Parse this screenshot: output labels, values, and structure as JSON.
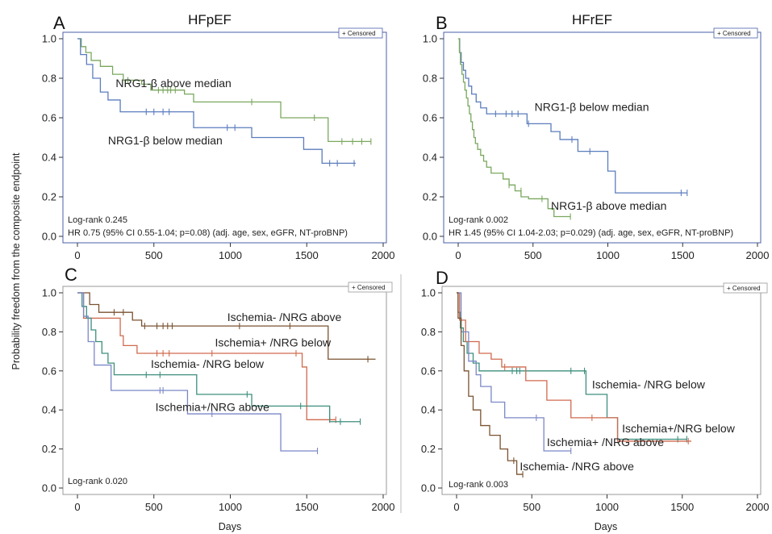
{
  "ylabel_shared": "Probability freedom from the composite endpoint",
  "xlabel_shared": "Days",
  "chart_data": [
    {
      "panel": "A",
      "title": "HFpEF",
      "type": "line",
      "xlim": [
        0,
        2000
      ],
      "ylim": [
        0,
        1
      ],
      "xticks": [
        0,
        500,
        1000,
        1500,
        2000
      ],
      "yticks": [
        0.0,
        0.2,
        0.4,
        0.6,
        0.8,
        1.0
      ],
      "legend": "Censored",
      "stats": [
        "Log-rank 0.245",
        "HR 0.75 (95% CI 0.55-1.04; p=0.08) (adj. age, sex, eGFR, NT-proBNP)"
      ],
      "series": [
        {
          "name": "NRG1-β above median",
          "color": "#7aa85e",
          "steps": [
            [
              0,
              1.0
            ],
            [
              25,
              0.96
            ],
            [
              55,
              0.93
            ],
            [
              90,
              0.89
            ],
            [
              150,
              0.86
            ],
            [
              230,
              0.82
            ],
            [
              300,
              0.79
            ],
            [
              420,
              0.77
            ],
            [
              480,
              0.74
            ],
            [
              700,
              0.72
            ],
            [
              760,
              0.68
            ],
            [
              1330,
              0.6
            ],
            [
              1640,
              0.48
            ],
            [
              1920,
              0.48
            ]
          ],
          "censored": [
            [
              330,
              0.79
            ],
            [
              530,
              0.74
            ],
            [
              560,
              0.74
            ],
            [
              590,
              0.74
            ],
            [
              610,
              0.74
            ],
            [
              640,
              0.74
            ],
            [
              1140,
              0.68
            ],
            [
              1550,
              0.6
            ],
            [
              1730,
              0.48
            ],
            [
              1800,
              0.48
            ],
            [
              1860,
              0.48
            ],
            [
              1920,
              0.48
            ]
          ],
          "label_pos": [
            250,
            0.755
          ]
        },
        {
          "name": "NRG1-β below median",
          "color": "#5b7dbd",
          "steps": [
            [
              0,
              1.0
            ],
            [
              20,
              0.92
            ],
            [
              60,
              0.87
            ],
            [
              100,
              0.8
            ],
            [
              150,
              0.73
            ],
            [
              200,
              0.69
            ],
            [
              280,
              0.63
            ],
            [
              760,
              0.55
            ],
            [
              1140,
              0.5
            ],
            [
              1480,
              0.44
            ],
            [
              1600,
              0.37
            ],
            [
              1820,
              0.37
            ]
          ],
          "censored": [
            [
              450,
              0.63
            ],
            [
              500,
              0.63
            ],
            [
              560,
              0.63
            ],
            [
              600,
              0.63
            ],
            [
              980,
              0.55
            ],
            [
              1030,
              0.55
            ],
            [
              1650,
              0.37
            ],
            [
              1700,
              0.37
            ],
            [
              1810,
              0.37
            ]
          ],
          "label_pos": [
            200,
            0.465
          ]
        }
      ]
    },
    {
      "panel": "B",
      "title": "HFrEF",
      "type": "line",
      "xlim": [
        0,
        2000
      ],
      "ylim": [
        0,
        1
      ],
      "xticks": [
        0,
        500,
        1000,
        1500,
        2000
      ],
      "yticks": [
        0.0,
        0.2,
        0.4,
        0.6,
        0.8,
        1.0
      ],
      "legend": "Censored",
      "stats": [
        "Log-rank 0.002",
        "HR 1.45 (95% CI 1.04-2.03; p=0.029) (adj. age, sex, eGFR, NT-proBNP)"
      ],
      "series": [
        {
          "name": "NRG1-β below median",
          "color": "#5b7dbd",
          "steps": [
            [
              0,
              1.0
            ],
            [
              10,
              0.93
            ],
            [
              20,
              0.88
            ],
            [
              35,
              0.84
            ],
            [
              50,
              0.8
            ],
            [
              70,
              0.76
            ],
            [
              90,
              0.72
            ],
            [
              120,
              0.68
            ],
            [
              150,
              0.65
            ],
            [
              190,
              0.62
            ],
            [
              460,
              0.57
            ],
            [
              620,
              0.53
            ],
            [
              680,
              0.49
            ],
            [
              800,
              0.43
            ],
            [
              1000,
              0.33
            ],
            [
              1050,
              0.22
            ],
            [
              1530,
              0.22
            ]
          ],
          "censored": [
            [
              250,
              0.62
            ],
            [
              320,
              0.62
            ],
            [
              360,
              0.62
            ],
            [
              400,
              0.62
            ],
            [
              470,
              0.57
            ],
            [
              760,
              0.49
            ],
            [
              880,
              0.43
            ],
            [
              1490,
              0.22
            ],
            [
              1530,
              0.22
            ]
          ],
          "label_pos": [
            510,
            0.635
          ]
        },
        {
          "name": "NRG1-β above median",
          "color": "#7aa85e",
          "steps": [
            [
              0,
              1.0
            ],
            [
              8,
              0.93
            ],
            [
              15,
              0.87
            ],
            [
              25,
              0.82
            ],
            [
              35,
              0.78
            ],
            [
              45,
              0.74
            ],
            [
              55,
              0.7
            ],
            [
              65,
              0.66
            ],
            [
              75,
              0.62
            ],
            [
              85,
              0.58
            ],
            [
              95,
              0.54
            ],
            [
              105,
              0.5
            ],
            [
              115,
              0.47
            ],
            [
              130,
              0.44
            ],
            [
              150,
              0.41
            ],
            [
              170,
              0.38
            ],
            [
              190,
              0.35
            ],
            [
              220,
              0.32
            ],
            [
              300,
              0.29
            ],
            [
              340,
              0.26
            ],
            [
              380,
              0.23
            ],
            [
              420,
              0.2
            ],
            [
              470,
              0.19
            ],
            [
              600,
              0.14
            ],
            [
              640,
              0.1
            ],
            [
              750,
              0.1
            ]
          ],
          "censored": [
            [
              340,
              0.26
            ],
            [
              420,
              0.23
            ],
            [
              560,
              0.19
            ],
            [
              750,
              0.1
            ]
          ],
          "label_pos": [
            620,
            0.135
          ]
        }
      ]
    },
    {
      "panel": "C",
      "type": "line",
      "xlim": [
        0,
        2000
      ],
      "ylim": [
        0,
        1
      ],
      "xticks": [
        0,
        500,
        1000,
        1500,
        2000
      ],
      "yticks": [
        0.0,
        0.2,
        0.4,
        0.6,
        0.8,
        1.0
      ],
      "legend": "Censored",
      "stats": [
        "Log-rank 0.020"
      ],
      "series": [
        {
          "name": "Ischemia- /NRG above",
          "color": "#7a5230",
          "steps": [
            [
              0,
              1.0
            ],
            [
              80,
              0.94
            ],
            [
              140,
              0.9
            ],
            [
              360,
              0.86
            ],
            [
              420,
              0.83
            ],
            [
              1640,
              0.66
            ],
            [
              1950,
              0.66
            ]
          ],
          "censored": [
            [
              240,
              0.9
            ],
            [
              300,
              0.9
            ],
            [
              440,
              0.83
            ],
            [
              520,
              0.83
            ],
            [
              560,
              0.83
            ],
            [
              590,
              0.83
            ],
            [
              620,
              0.83
            ],
            [
              1060,
              0.83
            ],
            [
              1390,
              0.83
            ],
            [
              1900,
              0.66
            ]
          ],
          "label_pos": [
            980,
            0.855
          ]
        },
        {
          "name": "Ischemia+ /NRG below",
          "color": "#d06a4e",
          "steps": [
            [
              0,
              1.0
            ],
            [
              40,
              0.87
            ],
            [
              280,
              0.78
            ],
            [
              300,
              0.73
            ],
            [
              390,
              0.69
            ],
            [
              1470,
              0.62
            ],
            [
              1500,
              0.35
            ],
            [
              1690,
              0.35
            ]
          ],
          "censored": [
            [
              520,
              0.69
            ],
            [
              560,
              0.69
            ],
            [
              600,
              0.69
            ],
            [
              880,
              0.69
            ],
            [
              1430,
              0.69
            ],
            [
              1650,
              0.35
            ],
            [
              1690,
              0.35
            ]
          ],
          "label_pos": [
            900,
            0.725
          ]
        },
        {
          "name": "Ischemia- /NRG below",
          "color": "#3d8f7d",
          "steps": [
            [
              0,
              1.0
            ],
            [
              30,
              0.93
            ],
            [
              60,
              0.87
            ],
            [
              90,
              0.81
            ],
            [
              120,
              0.75
            ],
            [
              160,
              0.69
            ],
            [
              200,
              0.64
            ],
            [
              240,
              0.58
            ],
            [
              780,
              0.48
            ],
            [
              1140,
              0.42
            ],
            [
              1650,
              0.34
            ],
            [
              1850,
              0.34
            ]
          ],
          "censored": [
            [
              450,
              0.58
            ],
            [
              540,
              0.58
            ],
            [
              1110,
              0.48
            ],
            [
              1460,
              0.42
            ],
            [
              1720,
              0.34
            ],
            [
              1850,
              0.34
            ]
          ],
          "label_pos": [
            480,
            0.615
          ]
        },
        {
          "name": "Ischemia+/NRG above",
          "color": "#7b87c7",
          "steps": [
            [
              0,
              1.0
            ],
            [
              40,
              0.88
            ],
            [
              70,
              0.75
            ],
            [
              110,
              0.63
            ],
            [
              220,
              0.5
            ],
            [
              720,
              0.38
            ],
            [
              1330,
              0.19
            ],
            [
              1570,
              0.19
            ]
          ],
          "censored": [
            [
              540,
              0.5
            ],
            [
              560,
              0.5
            ],
            [
              880,
              0.38
            ],
            [
              1570,
              0.19
            ]
          ],
          "label_pos": [
            510,
            0.395
          ]
        }
      ]
    },
    {
      "panel": "D",
      "type": "line",
      "xlim": [
        0,
        2000
      ],
      "ylim": [
        0,
        1
      ],
      "xticks": [
        0,
        500,
        1000,
        1500,
        2000
      ],
      "yticks": [
        0.0,
        0.2,
        0.4,
        0.6,
        0.8,
        1.0
      ],
      "legend": "Censored",
      "stats": [
        "Log-rank 0.003"
      ],
      "series": [
        {
          "name": "Ischemia- /NRG below",
          "color": "#3d8f7d",
          "steps": [
            [
              0,
              1.0
            ],
            [
              10,
              0.9
            ],
            [
              25,
              0.82
            ],
            [
              45,
              0.75
            ],
            [
              70,
              0.69
            ],
            [
              110,
              0.64
            ],
            [
              150,
              0.6
            ],
            [
              860,
              0.48
            ],
            [
              1000,
              0.36
            ],
            [
              1070,
              0.25
            ],
            [
              1530,
              0.25
            ]
          ],
          "censored": [
            [
              370,
              0.6
            ],
            [
              400,
              0.6
            ],
            [
              420,
              0.6
            ],
            [
              760,
              0.6
            ],
            [
              850,
              0.6
            ],
            [
              1470,
              0.25
            ],
            [
              1530,
              0.25
            ]
          ],
          "label_pos": [
            900,
            0.51
          ]
        },
        {
          "name": "Ischemia+/NRG below",
          "color": "#d06a4e",
          "steps": [
            [
              0,
              1.0
            ],
            [
              20,
              0.86
            ],
            [
              60,
              0.75
            ],
            [
              150,
              0.69
            ],
            [
              230,
              0.66
            ],
            [
              300,
              0.62
            ],
            [
              460,
              0.55
            ],
            [
              600,
              0.45
            ],
            [
              760,
              0.36
            ],
            [
              1000,
              0.36
            ],
            [
              1070,
              0.24
            ],
            [
              1500,
              0.24
            ],
            [
              1560,
              0.24
            ]
          ],
          "censored": [
            [
              320,
              0.62
            ],
            [
              900,
              0.36
            ],
            [
              1540,
              0.24
            ]
          ],
          "label_pos": [
            1100,
            0.285
          ]
        },
        {
          "name": "Ischemia+ /NRG above",
          "color": "#7b87c7",
          "steps": [
            [
              0,
              1.0
            ],
            [
              30,
              0.8
            ],
            [
              80,
              0.65
            ],
            [
              130,
              0.58
            ],
            [
              160,
              0.52
            ],
            [
              230,
              0.44
            ],
            [
              320,
              0.36
            ],
            [
              580,
              0.19
            ],
            [
              760,
              0.19
            ]
          ],
          "censored": [
            [
              530,
              0.36
            ],
            [
              760,
              0.19
            ]
          ],
          "label_pos": [
            600,
            0.215
          ]
        },
        {
          "name": "Ischemia- /NRG above",
          "color": "#7a5230",
          "steps": [
            [
              0,
              1.0
            ],
            [
              10,
              0.87
            ],
            [
              30,
              0.73
            ],
            [
              50,
              0.6
            ],
            [
              80,
              0.47
            ],
            [
              110,
              0.4
            ],
            [
              160,
              0.32
            ],
            [
              220,
              0.27
            ],
            [
              290,
              0.2
            ],
            [
              340,
              0.14
            ],
            [
              400,
              0.07
            ],
            [
              440,
              0.07
            ]
          ],
          "censored": [
            [
              380,
              0.14
            ],
            [
              440,
              0.07
            ]
          ],
          "label_pos": [
            420,
            0.09
          ]
        }
      ]
    }
  ]
}
